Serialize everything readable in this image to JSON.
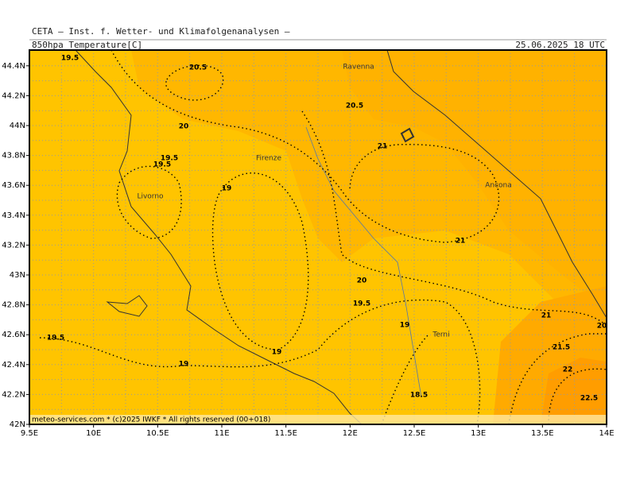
{
  "header": {
    "institute": "CETA — Inst. f. Wetter- und Klimafolgenanalysen —",
    "field": "850hpa_Temperature[C]",
    "valid": "25.06.2025 18 UTC"
  },
  "footer": "meteo-services.com * (c)2025 IWKF * All rights reserved (00+018)",
  "axes": {
    "x_labels": [
      "9.5E",
      "10E",
      "10.5E",
      "11E",
      "11.5E",
      "12E",
      "12.5E",
      "13E",
      "13.5E",
      "14E"
    ],
    "y_labels": [
      "42N",
      "42.2N",
      "42.4N",
      "42.6N",
      "42.8N",
      "43N",
      "43.2N",
      "43.4N",
      "43.6N",
      "43.8N",
      "44N",
      "44.2N",
      "44.4N"
    ]
  },
  "cities": [
    "Ravenna",
    "Firenze",
    "Livorno",
    "Ancona",
    "Terni"
  ],
  "contour_labels": [
    "19.5",
    "20.5",
    "20.5",
    "20",
    "21",
    "19.5",
    "19.5",
    "19",
    "21",
    "20",
    "19.5",
    "19",
    "21",
    "20",
    "19.5",
    "21.5",
    "19",
    "19",
    "22",
    "18.5",
    "22.5"
  ]
}
